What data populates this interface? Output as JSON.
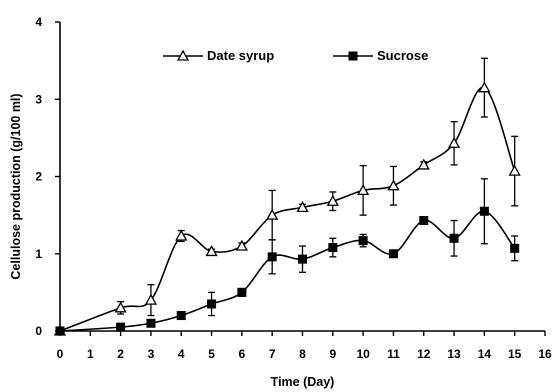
{
  "chart_data": {
    "type": "line",
    "xlabel": "Time (Day)",
    "ylabel": "Cellulose production (g/100 ml)",
    "xlim": [
      0,
      16
    ],
    "ylim": [
      0,
      4
    ],
    "x_ticks": [
      "0",
      "1",
      "2",
      "3",
      "4",
      "5",
      "6",
      "7",
      "8",
      "9",
      "10",
      "11",
      "12",
      "13",
      "14",
      "15",
      "16"
    ],
    "y_ticks": [
      "0",
      "1",
      "2",
      "3",
      "4"
    ],
    "grid": false,
    "legend_position": "top-center",
    "series": [
      {
        "name": "Date syrup",
        "marker": "open-triangle",
        "color": "#000000",
        "x": [
          0,
          2,
          3,
          4,
          5,
          6,
          7,
          8,
          9,
          10,
          11,
          12,
          13,
          14,
          15
        ],
        "y": [
          0.0,
          0.3,
          0.4,
          1.23,
          1.03,
          1.1,
          1.5,
          1.6,
          1.68,
          1.82,
          1.88,
          2.15,
          2.43,
          3.15,
          2.07
        ],
        "error": [
          0.0,
          0.08,
          0.2,
          0.07,
          0.03,
          0.04,
          0.32,
          0.04,
          0.12,
          0.32,
          0.25,
          0.04,
          0.28,
          0.38,
          0.45
        ]
      },
      {
        "name": "Sucrose",
        "marker": "filled-square",
        "color": "#000000",
        "x": [
          0,
          2,
          3,
          4,
          5,
          6,
          7,
          8,
          9,
          10,
          11,
          12,
          13,
          14,
          15
        ],
        "y": [
          0.0,
          0.05,
          0.1,
          0.2,
          0.35,
          0.5,
          0.96,
          0.93,
          1.08,
          1.17,
          1.0,
          1.43,
          1.2,
          1.55,
          1.07
        ],
        "error": [
          0.0,
          0.02,
          0.03,
          0.03,
          0.15,
          0.05,
          0.22,
          0.17,
          0.12,
          0.08,
          0.02,
          0.03,
          0.23,
          0.42,
          0.16
        ]
      }
    ]
  }
}
